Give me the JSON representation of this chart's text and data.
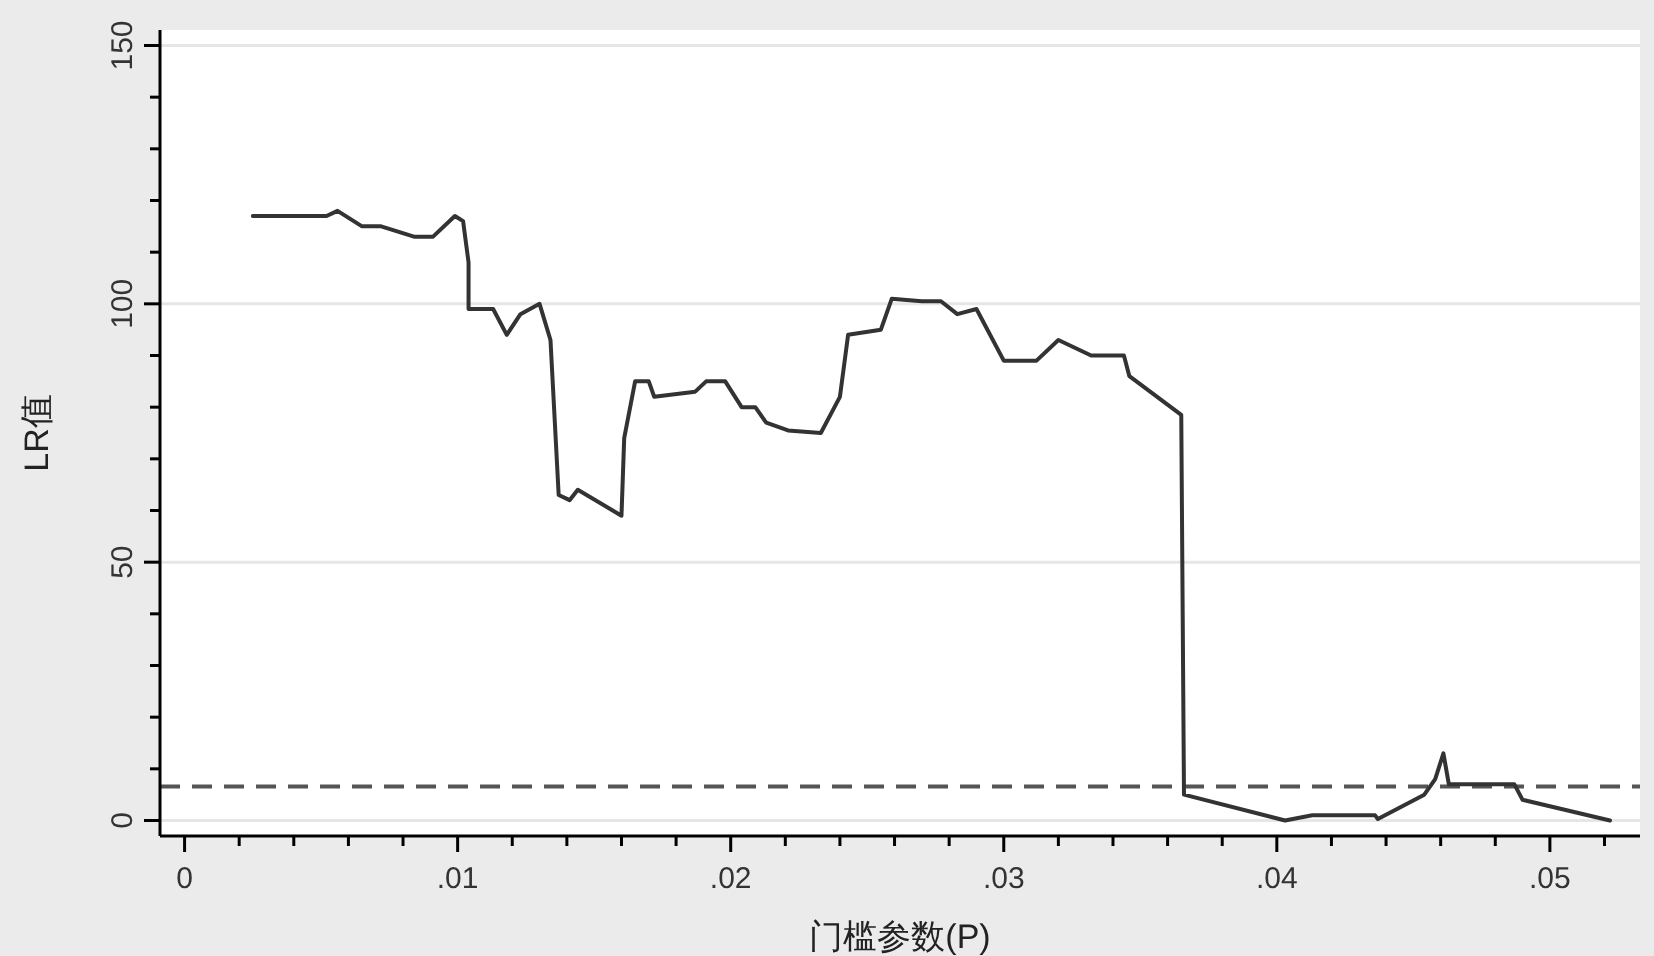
{
  "chart_data": {
    "type": "line",
    "xlabel": "门槛参数(P)",
    "ylabel": "LR值",
    "x": [
      0.0025,
      0.0052,
      0.0056,
      0.0065,
      0.0072,
      0.0084,
      0.0091,
      0.0099,
      0.0102,
      0.0104,
      0.0104,
      0.0113,
      0.0118,
      0.0123,
      0.013,
      0.0134,
      0.0137,
      0.0141,
      0.0144,
      0.016,
      0.0161,
      0.0165,
      0.017,
      0.0172,
      0.0187,
      0.0191,
      0.0198,
      0.0204,
      0.0209,
      0.0213,
      0.0221,
      0.0233,
      0.024,
      0.0243,
      0.0255,
      0.0259,
      0.027,
      0.0277,
      0.0283,
      0.029,
      0.03,
      0.0312,
      0.032,
      0.0332,
      0.0344,
      0.0346,
      0.0365,
      0.0366,
      0.0403,
      0.0413,
      0.0436,
      0.0437,
      0.0454,
      0.0458,
      0.0461,
      0.0463,
      0.0487,
      0.049,
      0.0522
    ],
    "series": [
      {
        "color": "#333333",
        "values": [
          117,
          117,
          118,
          115,
          115,
          113,
          113,
          117,
          116,
          108,
          99,
          99,
          94,
          98,
          100,
          93,
          63,
          62,
          64,
          59,
          74,
          85,
          85,
          82,
          83,
          85,
          85,
          80,
          80,
          77,
          75.5,
          75,
          82,
          94,
          95,
          101,
          100.5,
          100.5,
          98,
          99,
          89,
          89,
          93,
          90,
          90,
          86,
          78.5,
          5,
          0,
          1,
          1,
          0.3,
          5,
          8,
          13,
          7,
          7,
          4,
          0
        ]
      }
    ],
    "ref_lines": [
      {
        "axis": "y",
        "value": 6.6,
        "color": "#555555",
        "line_style": "dashed"
      }
    ],
    "xlim": [
      -0.0009,
      0.0533
    ],
    "ylim": [
      -3,
      153
    ],
    "xticks": [
      0,
      {
        "value": 0.002,
        "label": null
      },
      {
        "value": 0.004,
        "label": null
      },
      {
        "value": 0.006,
        "label": null
      },
      {
        "value": 0.008,
        "label": null
      },
      {
        "value": 0.01,
        "label": ".01"
      },
      {
        "value": 0.012,
        "label": null
      },
      {
        "value": 0.014,
        "label": null
      },
      {
        "value": 0.016,
        "label": null
      },
      {
        "value": 0.018,
        "label": null
      },
      {
        "value": 0.02,
        "label": ".02"
      },
      {
        "value": 0.022,
        "label": null
      },
      {
        "value": 0.024,
        "label": null
      },
      {
        "value": 0.026,
        "label": null
      },
      {
        "value": 0.028,
        "label": null
      },
      {
        "value": 0.03,
        "label": ".03"
      },
      {
        "value": 0.032,
        "label": null
      },
      {
        "value": 0.034,
        "label": null
      },
      {
        "value": 0.036,
        "label": null
      },
      {
        "value": 0.038,
        "label": null
      },
      {
        "value": 0.04,
        "label": ".04"
      },
      {
        "value": 0.042,
        "label": null
      },
      {
        "value": 0.044,
        "label": null
      },
      {
        "value": 0.046,
        "label": null
      },
      {
        "value": 0.048,
        "label": null
      },
      {
        "value": 0.05,
        "label": ".05"
      },
      {
        "value": 0.052,
        "label": null
      }
    ],
    "yticks": [
      0,
      {
        "value": 10,
        "label": null
      },
      {
        "value": 20,
        "label": null
      },
      {
        "value": 30,
        "label": null
      },
      {
        "value": 40,
        "label": null
      },
      50,
      {
        "value": 60,
        "label": null
      },
      {
        "value": 70,
        "label": null
      },
      {
        "value": 80,
        "label": null
      },
      {
        "value": 90,
        "label": null
      },
      100,
      {
        "value": 110,
        "label": null
      },
      {
        "value": 120,
        "label": null
      },
      {
        "value": 130,
        "label": null
      },
      {
        "value": 140,
        "label": null
      },
      150
    ],
    "grid": "y",
    "line_style": "solid",
    "marker": "none"
  }
}
